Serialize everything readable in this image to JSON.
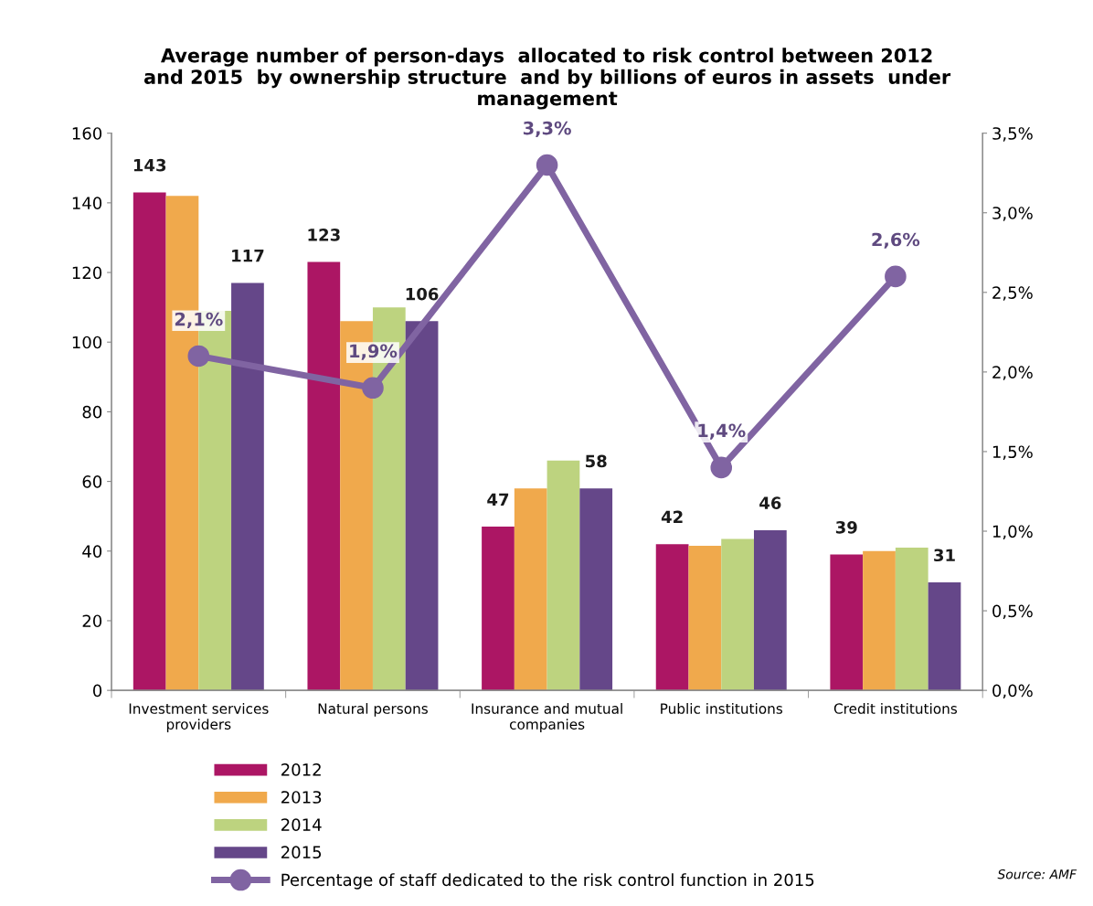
{
  "chart_data": {
    "type": "bar",
    "title": "Average number of person-days  allocated to risk control between 2012\nand 2015  by ownership structure  and by billions of euros in assets  under\nmanagement",
    "categories": [
      "Investment services\nproviders",
      "Natural persons",
      "Insurance and mutual\ncompanies",
      "Public institutions",
      "Credit institutions"
    ],
    "series": [
      {
        "name": "2012",
        "color": "#ac1664",
        "values": [
          143,
          123,
          47,
          42,
          39
        ],
        "value_labels": [
          "143",
          "123",
          "47",
          "42",
          "39"
        ]
      },
      {
        "name": "2013",
        "color": "#f0a94c",
        "values": [
          142,
          106,
          58,
          41.5,
          40
        ]
      },
      {
        "name": "2014",
        "color": "#bdd37f",
        "values": [
          109,
          110,
          66,
          43.5,
          41
        ]
      },
      {
        "name": "2015",
        "color": "#654789",
        "values": [
          117,
          106,
          58,
          46,
          31
        ],
        "value_labels": [
          "117",
          "106",
          "58",
          "46",
          "31"
        ]
      },
      {
        "name": "Percentage of staff dedicated to the risk control function in 2015",
        "type": "line",
        "axis": "y2",
        "color": "#8064a2",
        "marker": "circle",
        "values": [
          2.1,
          1.9,
          3.3,
          1.4,
          2.6
        ],
        "value_labels": [
          "2,1%",
          "1,9%",
          "3,3%",
          "1,4%",
          "2,6%"
        ]
      }
    ],
    "ylim": [
      0,
      160
    ],
    "yticks": [
      0,
      20,
      40,
      60,
      80,
      100,
      120,
      140,
      160
    ],
    "y2lim": [
      0,
      3.5
    ],
    "y2ticks": [
      {
        "value": 0,
        "label": "0,0%"
      },
      {
        "value": 0.5,
        "label": "0,5%"
      },
      {
        "value": 1,
        "label": "1,0%"
      },
      {
        "value": 1.5,
        "label": "1,5%"
      },
      {
        "value": 2,
        "label": "2,0%"
      },
      {
        "value": 2.5,
        "label": "2,5%"
      },
      {
        "value": 3,
        "label": "3,0%"
      },
      {
        "value": 3.5,
        "label": "3,5%"
      }
    ],
    "legend": "bottom",
    "grid": false,
    "annotations": [
      "Source: AMF"
    ]
  }
}
